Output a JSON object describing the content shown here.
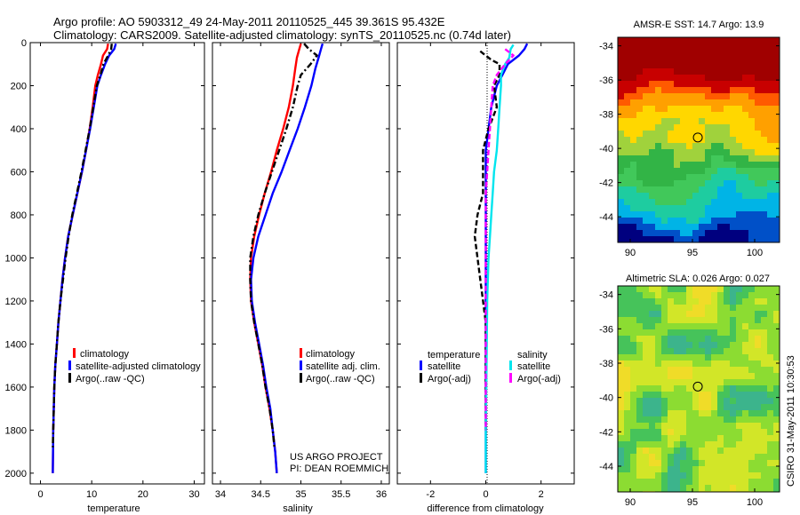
{
  "figure": {
    "title_line1": "Argo profile: AO 5903312_49 24-May-2011 20110525_445 39.361S 95.432E",
    "title_line2": "Climatology: CARS2009. Satellite-adjusted climatology: synTS_20110525.nc (0.74d later)",
    "credit_line1": "US ARGO PROJECT",
    "credit_line2": "PI: DEAN ROEMMICH",
    "side_label": "CSIRO 31-May-2011 10:30:53"
  },
  "colors": {
    "climatology": "#ff0000",
    "satellite": "#0000ff",
    "argo": "#000000",
    "salinity_satellite": "#00e5ee",
    "salinity_argo": "#ff00ff"
  },
  "chart_data": [
    {
      "type": "line",
      "xlabel": "temperature",
      "ylabel": "",
      "xlim": [
        -2,
        32
      ],
      "ylim": [
        2050,
        0
      ],
      "xticks": [
        0,
        10,
        20,
        30
      ],
      "yticks": [
        0,
        200,
        400,
        600,
        800,
        1000,
        1200,
        1400,
        1600,
        1800,
        2000
      ],
      "legend": {
        "position": "bottom-right",
        "entries": [
          "climatology",
          "satellite-adjusted climatology",
          "Argo(..raw -QC)"
        ]
      },
      "series": [
        {
          "name": "climatology",
          "style": "solid",
          "color": "#ff0000",
          "points": [
            [
              13.2,
              5
            ],
            [
              13.0,
              30
            ],
            [
              12.2,
              60
            ],
            [
              11.8,
              100
            ],
            [
              11.2,
              150
            ],
            [
              10.7,
              200
            ],
            [
              10.2,
              300
            ],
            [
              9.6,
              400
            ],
            [
              8.9,
              500
            ],
            [
              8.1,
              600
            ],
            [
              7.2,
              700
            ],
            [
              6.3,
              800
            ],
            [
              5.4,
              900
            ],
            [
              4.8,
              1000
            ],
            [
              4.3,
              1100
            ],
            [
              3.9,
              1200
            ],
            [
              3.5,
              1300
            ],
            [
              3.2,
              1400
            ],
            [
              2.9,
              1500
            ],
            [
              2.7,
              1600
            ],
            [
              2.5,
              1800
            ],
            [
              2.4,
              2000
            ]
          ]
        },
        {
          "name": "satellite-adjusted climatology",
          "style": "solid",
          "color": "#0000ff",
          "points": [
            [
              14.7,
              5
            ],
            [
              14.4,
              30
            ],
            [
              13.4,
              60
            ],
            [
              12.6,
              100
            ],
            [
              11.8,
              150
            ],
            [
              11.1,
              200
            ],
            [
              10.4,
              300
            ],
            [
              9.7,
              400
            ],
            [
              8.9,
              500
            ],
            [
              8.1,
              600
            ],
            [
              7.2,
              700
            ],
            [
              6.3,
              800
            ],
            [
              5.4,
              900
            ],
            [
              4.8,
              1000
            ],
            [
              4.3,
              1100
            ],
            [
              3.9,
              1200
            ],
            [
              3.5,
              1300
            ],
            [
              3.2,
              1400
            ],
            [
              2.9,
              1500
            ],
            [
              2.7,
              1600
            ],
            [
              2.5,
              1800
            ],
            [
              2.4,
              2000
            ]
          ]
        },
        {
          "name": "Argo(..raw -QC)",
          "style": "dashdot",
          "color": "#000000",
          "points": [
            [
              13.9,
              5
            ],
            [
              13.8,
              30
            ],
            [
              13.2,
              60
            ],
            [
              12.3,
              100
            ],
            [
              11.7,
              150
            ],
            [
              11.0,
              200
            ],
            [
              10.3,
              300
            ],
            [
              9.6,
              400
            ],
            [
              8.8,
              500
            ],
            [
              8.0,
              600
            ],
            [
              7.1,
              700
            ],
            [
              6.2,
              800
            ],
            [
              5.5,
              900
            ],
            [
              4.9,
              1000
            ],
            [
              4.4,
              1100
            ],
            [
              3.9,
              1200
            ],
            [
              3.5,
              1300
            ],
            [
              3.2,
              1400
            ],
            [
              2.9,
              1500
            ],
            [
              2.7,
              1600
            ],
            [
              2.5,
              1800
            ],
            [
              2.4,
              1880
            ]
          ]
        }
      ]
    },
    {
      "type": "line",
      "xlabel": "salinity",
      "ylabel": "",
      "xlim": [
        33.9,
        36.1
      ],
      "ylim": [
        2050,
        0
      ],
      "xticks": [
        34,
        34.5,
        35,
        35.5,
        36
      ],
      "xtick_labels": [
        "34",
        "34.5",
        "35",
        "35.5",
        "36"
      ],
      "yticks": [
        0,
        200,
        400,
        600,
        800,
        1000,
        1200,
        1400,
        1600,
        1800,
        2000
      ],
      "legend": {
        "position": "bottom-right",
        "entries": [
          "climatology",
          "satellite adj. clim.",
          "Argo(..raw -QC)"
        ]
      },
      "series": [
        {
          "name": "climatology",
          "style": "solid",
          "color": "#ff0000",
          "points": [
            [
              35.0,
              5
            ],
            [
              34.98,
              30
            ],
            [
              34.95,
              70
            ],
            [
              34.93,
              120
            ],
            [
              34.9,
              200
            ],
            [
              34.85,
              300
            ],
            [
              34.78,
              400
            ],
            [
              34.7,
              500
            ],
            [
              34.63,
              600
            ],
            [
              34.55,
              700
            ],
            [
              34.48,
              800
            ],
            [
              34.42,
              900
            ],
            [
              34.38,
              1000
            ],
            [
              34.37,
              1100
            ],
            [
              34.38,
              1200
            ],
            [
              34.42,
              1300
            ],
            [
              34.47,
              1400
            ],
            [
              34.52,
              1500
            ],
            [
              34.56,
              1600
            ],
            [
              34.61,
              1700
            ],
            [
              34.65,
              1800
            ],
            [
              34.68,
              1900
            ],
            [
              34.7,
              2000
            ]
          ]
        },
        {
          "name": "satellite adj. clim.",
          "style": "solid",
          "color": "#0000ff",
          "points": [
            [
              35.27,
              5
            ],
            [
              35.25,
              30
            ],
            [
              35.22,
              70
            ],
            [
              35.18,
              120
            ],
            [
              35.13,
              200
            ],
            [
              35.05,
              300
            ],
            [
              34.96,
              400
            ],
            [
              34.86,
              500
            ],
            [
              34.76,
              600
            ],
            [
              34.65,
              700
            ],
            [
              34.56,
              800
            ],
            [
              34.47,
              900
            ],
            [
              34.41,
              1000
            ],
            [
              34.38,
              1100
            ],
            [
              34.39,
              1200
            ],
            [
              34.43,
              1300
            ],
            [
              34.48,
              1400
            ],
            [
              34.53,
              1500
            ],
            [
              34.57,
              1600
            ],
            [
              34.62,
              1700
            ],
            [
              34.65,
              1800
            ],
            [
              34.68,
              1900
            ],
            [
              34.7,
              2000
            ]
          ]
        },
        {
          "name": "Argo(..raw -QC)",
          "style": "dashdot",
          "color": "#000000",
          "points": [
            [
              35.04,
              5
            ],
            [
              35.1,
              30
            ],
            [
              35.2,
              60
            ],
            [
              35.12,
              100
            ],
            [
              35.0,
              150
            ],
            [
              34.96,
              200
            ],
            [
              34.9,
              300
            ],
            [
              34.82,
              400
            ],
            [
              34.73,
              500
            ],
            [
              34.64,
              600
            ],
            [
              34.55,
              700
            ],
            [
              34.47,
              800
            ],
            [
              34.41,
              900
            ],
            [
              34.37,
              1000
            ],
            [
              34.37,
              1100
            ],
            [
              34.38,
              1200
            ],
            [
              34.42,
              1300
            ],
            [
              34.47,
              1400
            ],
            [
              34.52,
              1500
            ],
            [
              34.56,
              1600
            ],
            [
              34.61,
              1700
            ],
            [
              34.65,
              1800
            ],
            [
              34.67,
              1880
            ]
          ]
        }
      ]
    },
    {
      "type": "line",
      "xlabel": "difference from climatology",
      "ylabel": "",
      "xlim": [
        -3.2,
        3.2
      ],
      "ylim": [
        2050,
        0
      ],
      "xticks": [
        -2,
        0,
        2
      ],
      "yticks": [
        0,
        200,
        400,
        600,
        800,
        1000,
        1200,
        1400,
        1600,
        1800,
        2000
      ],
      "legend": {
        "position": "bottom",
        "temperature_header": "temperature",
        "salinity_header": "salinity",
        "entries": [
          "satellite",
          "Argo(-adj)",
          "satellite",
          "Argo(-adj)"
        ]
      },
      "series": [
        {
          "name": "temperature satellite",
          "style": "solid",
          "color": "#0000ff",
          "points": [
            [
              1.5,
              5
            ],
            [
              1.4,
              30
            ],
            [
              1.2,
              60
            ],
            [
              0.8,
              100
            ],
            [
              0.6,
              150
            ],
            [
              0.4,
              200
            ],
            [
              0.2,
              300
            ],
            [
              0.1,
              400
            ],
            [
              0.0,
              500
            ],
            [
              0.0,
              700
            ],
            [
              0.0,
              1000
            ],
            [
              0.0,
              1500
            ],
            [
              0.0,
              2000
            ]
          ]
        },
        {
          "name": "temperature Argo(-adj)",
          "style": "dashed",
          "color": "#000000",
          "points": [
            [
              -0.2,
              40
            ],
            [
              0.2,
              80
            ],
            [
              0.5,
              100
            ],
            [
              0.5,
              150
            ],
            [
              0.3,
              200
            ],
            [
              0.4,
              300
            ],
            [
              0.1,
              400
            ],
            [
              -0.1,
              500
            ],
            [
              -0.1,
              700
            ],
            [
              -0.3,
              800
            ],
            [
              -0.4,
              900
            ],
            [
              -0.3,
              1000
            ],
            [
              -0.2,
              1100
            ],
            [
              -0.1,
              1200
            ],
            [
              0.0,
              1300
            ],
            [
              0.0,
              1500
            ],
            [
              0.0,
              1800
            ]
          ]
        },
        {
          "name": "salinity satellite",
          "style": "solid",
          "color": "#00e5ee",
          "points": [
            [
              1.0,
              10
            ],
            [
              0.9,
              30
            ],
            [
              0.85,
              70
            ],
            [
              0.7,
              100
            ],
            [
              0.55,
              150
            ],
            [
              0.55,
              200
            ],
            [
              0.5,
              300
            ],
            [
              0.45,
              400
            ],
            [
              0.4,
              500
            ],
            [
              0.3,
              600
            ],
            [
              0.25,
              700
            ],
            [
              0.2,
              800
            ],
            [
              0.15,
              900
            ],
            [
              0.1,
              1000
            ],
            [
              0.05,
              1200
            ],
            [
              0.03,
              1500
            ],
            [
              0.0,
              1800
            ],
            [
              0.0,
              2000
            ]
          ]
        },
        {
          "name": "salinity Argo(-adj)",
          "style": "dashed",
          "color": "#ff00ff",
          "points": [
            [
              0.7,
              30
            ],
            [
              1.0,
              60
            ],
            [
              0.7,
              100
            ],
            [
              0.4,
              150
            ],
            [
              0.25,
              200
            ],
            [
              0.2,
              300
            ],
            [
              0.15,
              400
            ],
            [
              0.1,
              500
            ],
            [
              0.05,
              600
            ],
            [
              0.0,
              700
            ],
            [
              0.0,
              1000
            ],
            [
              0.0,
              1500
            ],
            [
              0.0,
              1800
            ]
          ]
        }
      ]
    },
    {
      "type": "heatmap",
      "title": "AMSR-E SST: 14.7 Argo: 13.9",
      "xlim": [
        89,
        102
      ],
      "ylim": [
        -45.5,
        -33.5
      ],
      "xticks": [
        90,
        95,
        100
      ],
      "yticks": [
        -34,
        -36,
        -38,
        -40,
        -42,
        -44
      ],
      "marker": {
        "lon": 95.432,
        "lat": -39.361
      },
      "colors": [
        "#00007f",
        "#0050c8",
        "#00b4e6",
        "#1ecca0",
        "#41c85a",
        "#32b446",
        "#a0d23c",
        "#ffd700",
        "#ffa000",
        "#ff5a00",
        "#c80000",
        "#a00000"
      ]
    },
    {
      "type": "heatmap",
      "title": "Altimetric SLA: 0.026 Argo: 0.027",
      "xlim": [
        89,
        102
      ],
      "ylim": [
        -45.5,
        -33.5
      ],
      "xticks": [
        90,
        95,
        100
      ],
      "yticks": [
        -34,
        -36,
        -38,
        -40,
        -42,
        -44
      ],
      "marker": {
        "lon": 95.432,
        "lat": -39.361
      },
      "colors": [
        "#3cb48c",
        "#46c35a",
        "#8cdc32",
        "#d2e628",
        "#f0dc28"
      ]
    }
  ]
}
